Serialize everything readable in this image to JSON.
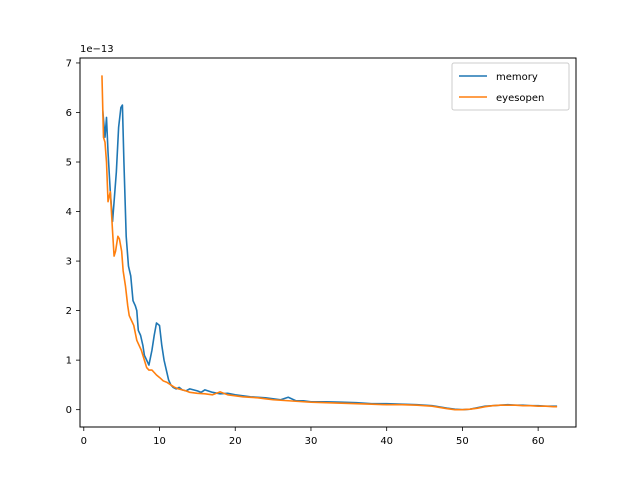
{
  "chart_data": {
    "type": "line",
    "title": "",
    "xlabel": "",
    "ylabel": "",
    "y_offset_label": "1e−13",
    "y_scale": 1e-13,
    "xlim": [
      -0.5,
      65
    ],
    "ylim": [
      -0.35,
      7.1
    ],
    "xticks": [
      0,
      10,
      20,
      30,
      40,
      50,
      60
    ],
    "yticks": [
      0,
      1,
      2,
      3,
      4,
      5,
      6,
      7
    ],
    "grid": false,
    "legend_position": "top-right",
    "series": [
      {
        "name": "memory",
        "color": "#1f77b4",
        "x": [
          2.5,
          2.8,
          3.0,
          3.2,
          3.5,
          3.8,
          4.0,
          4.3,
          4.6,
          4.9,
          5.1,
          5.3,
          5.6,
          5.9,
          6.2,
          6.5,
          6.8,
          7.0,
          7.2,
          7.5,
          7.8,
          8.0,
          8.3,
          8.6,
          9.0,
          9.3,
          9.6,
          10.0,
          10.3,
          10.6,
          10.9,
          11.2,
          11.5,
          11.8,
          12.2,
          12.6,
          13.0,
          13.5,
          14.0,
          14.5,
          15.0,
          15.5,
          16.0,
          17.0,
          18.0,
          19.0,
          20.0,
          21.0,
          22.0,
          23.0,
          24.0,
          25.0,
          26.0,
          27.0,
          28.0,
          29.0,
          30.0,
          32.0,
          34.0,
          36.0,
          38.0,
          40.0,
          42.0,
          44.0,
          46.0,
          48.0,
          49.0,
          50.0,
          51.0,
          52.0,
          53.0,
          54.0,
          55.0,
          56.0,
          57.0,
          58.0,
          59.0,
          60.0,
          61.0,
          62.0,
          62.5
        ],
        "y": [
          6.05,
          5.5,
          5.9,
          5.2,
          4.4,
          3.8,
          4.2,
          4.8,
          5.7,
          6.1,
          6.15,
          5.0,
          3.5,
          2.9,
          2.7,
          2.2,
          2.1,
          2.0,
          1.6,
          1.5,
          1.3,
          1.1,
          1.0,
          0.9,
          1.2,
          1.5,
          1.75,
          1.7,
          1.3,
          1.0,
          0.8,
          0.6,
          0.5,
          0.45,
          0.42,
          0.45,
          0.4,
          0.38,
          0.42,
          0.4,
          0.38,
          0.35,
          0.4,
          0.35,
          0.32,
          0.33,
          0.3,
          0.28,
          0.26,
          0.25,
          0.24,
          0.22,
          0.2,
          0.25,
          0.18,
          0.18,
          0.16,
          0.16,
          0.15,
          0.14,
          0.12,
          0.12,
          0.11,
          0.1,
          0.08,
          0.03,
          0.01,
          0.0,
          0.01,
          0.04,
          0.07,
          0.08,
          0.09,
          0.1,
          0.09,
          0.09,
          0.08,
          0.08,
          0.07,
          0.07,
          0.07
        ]
      },
      {
        "name": "eyesopen",
        "color": "#ff7f0e",
        "x": [
          2.4,
          2.6,
          2.8,
          3.0,
          3.2,
          3.5,
          3.8,
          4.0,
          4.2,
          4.5,
          4.7,
          5.0,
          5.2,
          5.5,
          5.8,
          6.0,
          6.3,
          6.6,
          7.0,
          7.3,
          7.6,
          8.0,
          8.3,
          8.6,
          9.0,
          9.3,
          9.6,
          10.0,
          10.5,
          11.0,
          11.5,
          12.0,
          12.5,
          13.0,
          13.5,
          14.0,
          15.0,
          16.0,
          17.0,
          18.0,
          19.0,
          20.0,
          21.0,
          22.0,
          23.0,
          24.0,
          25.0,
          26.0,
          27.0,
          28.0,
          29.0,
          30.0,
          32.0,
          34.0,
          36.0,
          38.0,
          40.0,
          42.0,
          44.0,
          46.0,
          48.0,
          49.0,
          50.0,
          51.0,
          52.0,
          53.0,
          54.0,
          55.0,
          56.0,
          57.0,
          58.0,
          59.0,
          60.0,
          61.0,
          62.0,
          62.5
        ],
        "y": [
          6.75,
          5.5,
          5.4,
          5.0,
          4.2,
          4.4,
          3.6,
          3.1,
          3.2,
          3.5,
          3.45,
          3.2,
          2.8,
          2.5,
          2.1,
          1.9,
          1.8,
          1.7,
          1.4,
          1.3,
          1.2,
          1.0,
          0.85,
          0.8,
          0.8,
          0.75,
          0.7,
          0.65,
          0.58,
          0.55,
          0.5,
          0.45,
          0.42,
          0.4,
          0.38,
          0.35,
          0.33,
          0.32,
          0.3,
          0.36,
          0.3,
          0.28,
          0.26,
          0.25,
          0.24,
          0.22,
          0.2,
          0.19,
          0.18,
          0.17,
          0.16,
          0.15,
          0.14,
          0.13,
          0.12,
          0.11,
          0.1,
          0.1,
          0.09,
          0.07,
          0.02,
          0.0,
          0.0,
          0.01,
          0.03,
          0.06,
          0.08,
          0.09,
          0.09,
          0.09,
          0.08,
          0.08,
          0.07,
          0.07,
          0.06,
          0.06
        ]
      }
    ]
  }
}
